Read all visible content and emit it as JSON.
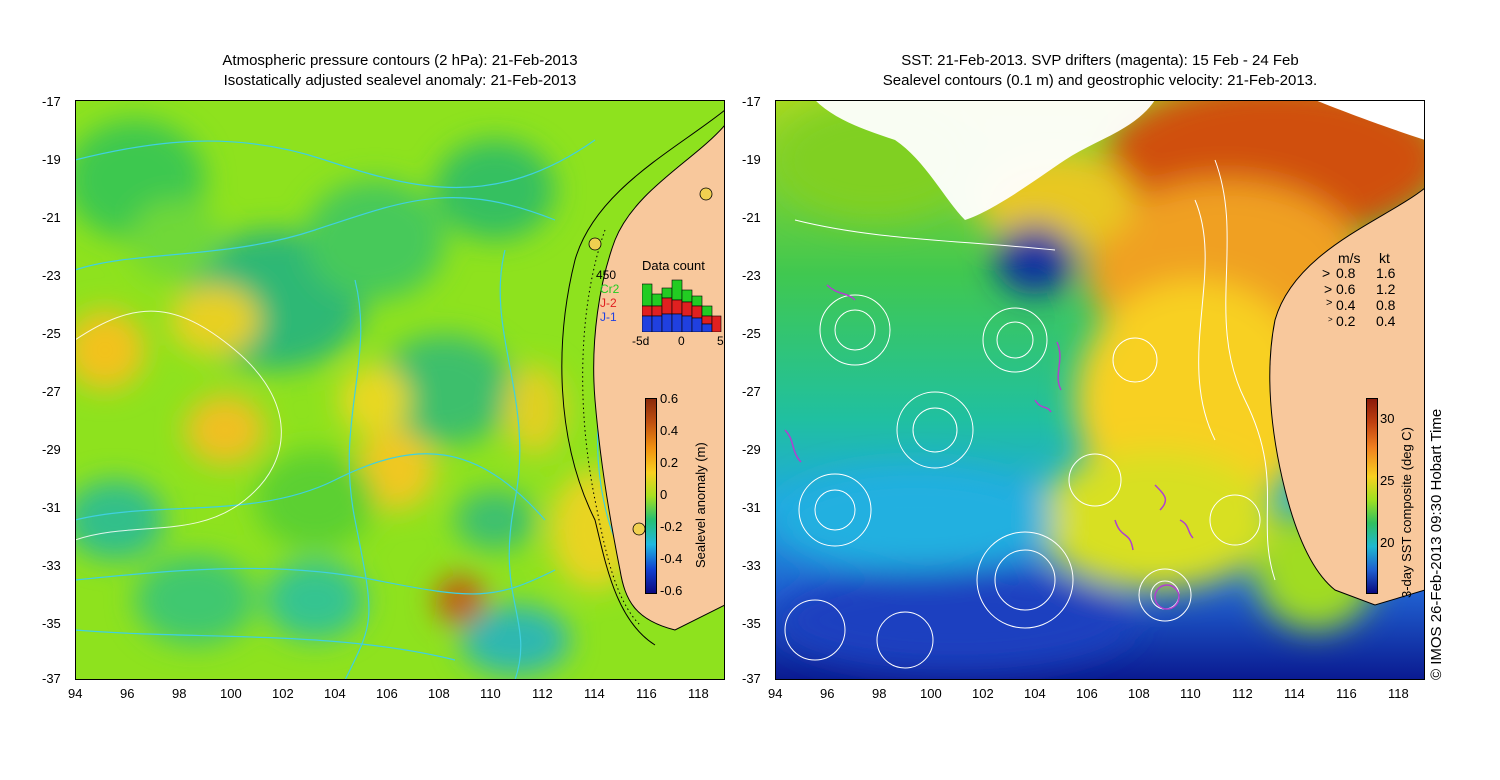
{
  "left_panel": {
    "title_line1": "Atmospheric pressure contours (2 hPa): 21-Feb-2013",
    "title_line2": "Isostatically adjusted sealevel anomaly: 21-Feb-2013",
    "colorbar_label": "Sealevel anomaly (m)",
    "colorbar_ticks": [
      "0.6",
      "0.4",
      "0.2",
      "0",
      "-0.2",
      "-0.4",
      "-0.6"
    ],
    "inset": {
      "title": "Data count",
      "max_label": "450",
      "legend": [
        {
          "name": "Cr2",
          "color": "#22cc22"
        },
        {
          "name": "J-2",
          "color": "#e02020"
        },
        {
          "name": "J-1",
          "color": "#2040e0"
        }
      ],
      "x_ticks": [
        "-5d",
        "0",
        "5"
      ]
    }
  },
  "right_panel": {
    "title_line1": "SST: 21-Feb-2013. SVP drifters (magenta): 15 Feb - 24 Feb",
    "title_line2": "Sealevel contours (0.1 m) and geostrophic velocity: 21-Feb-2013.",
    "colorbar_label": "3-day SST composite (deg C)",
    "colorbar_ticks": [
      "30",
      "25",
      "20"
    ],
    "velocity_legend": {
      "header_ms": "m/s",
      "header_kt": "kt",
      "rows": [
        {
          "ms": "0.8",
          "kt": "1.6"
        },
        {
          "ms": "0.6",
          "kt": "1.2"
        },
        {
          "ms": "0.4",
          "kt": "0.8"
        },
        {
          "ms": "0.2",
          "kt": "0.4"
        }
      ]
    },
    "credit": "© IMOS 26-Feb-2013 09:30 Hobart Time"
  },
  "axes": {
    "y_ticks": [
      "-17",
      "-19",
      "-21",
      "-23",
      "-25",
      "-27",
      "-29",
      "-31",
      "-33",
      "-35",
      "-37"
    ],
    "x_ticks": [
      "94",
      "96",
      "98",
      "100",
      "102",
      "104",
      "106",
      "108",
      "110",
      "112",
      "114",
      "116",
      "118"
    ]
  },
  "colors": {
    "land": "#f8c89c",
    "contour_cyan": "#40d0e0",
    "sst_contour": "#ffffff",
    "drifter": "#b040d0"
  }
}
